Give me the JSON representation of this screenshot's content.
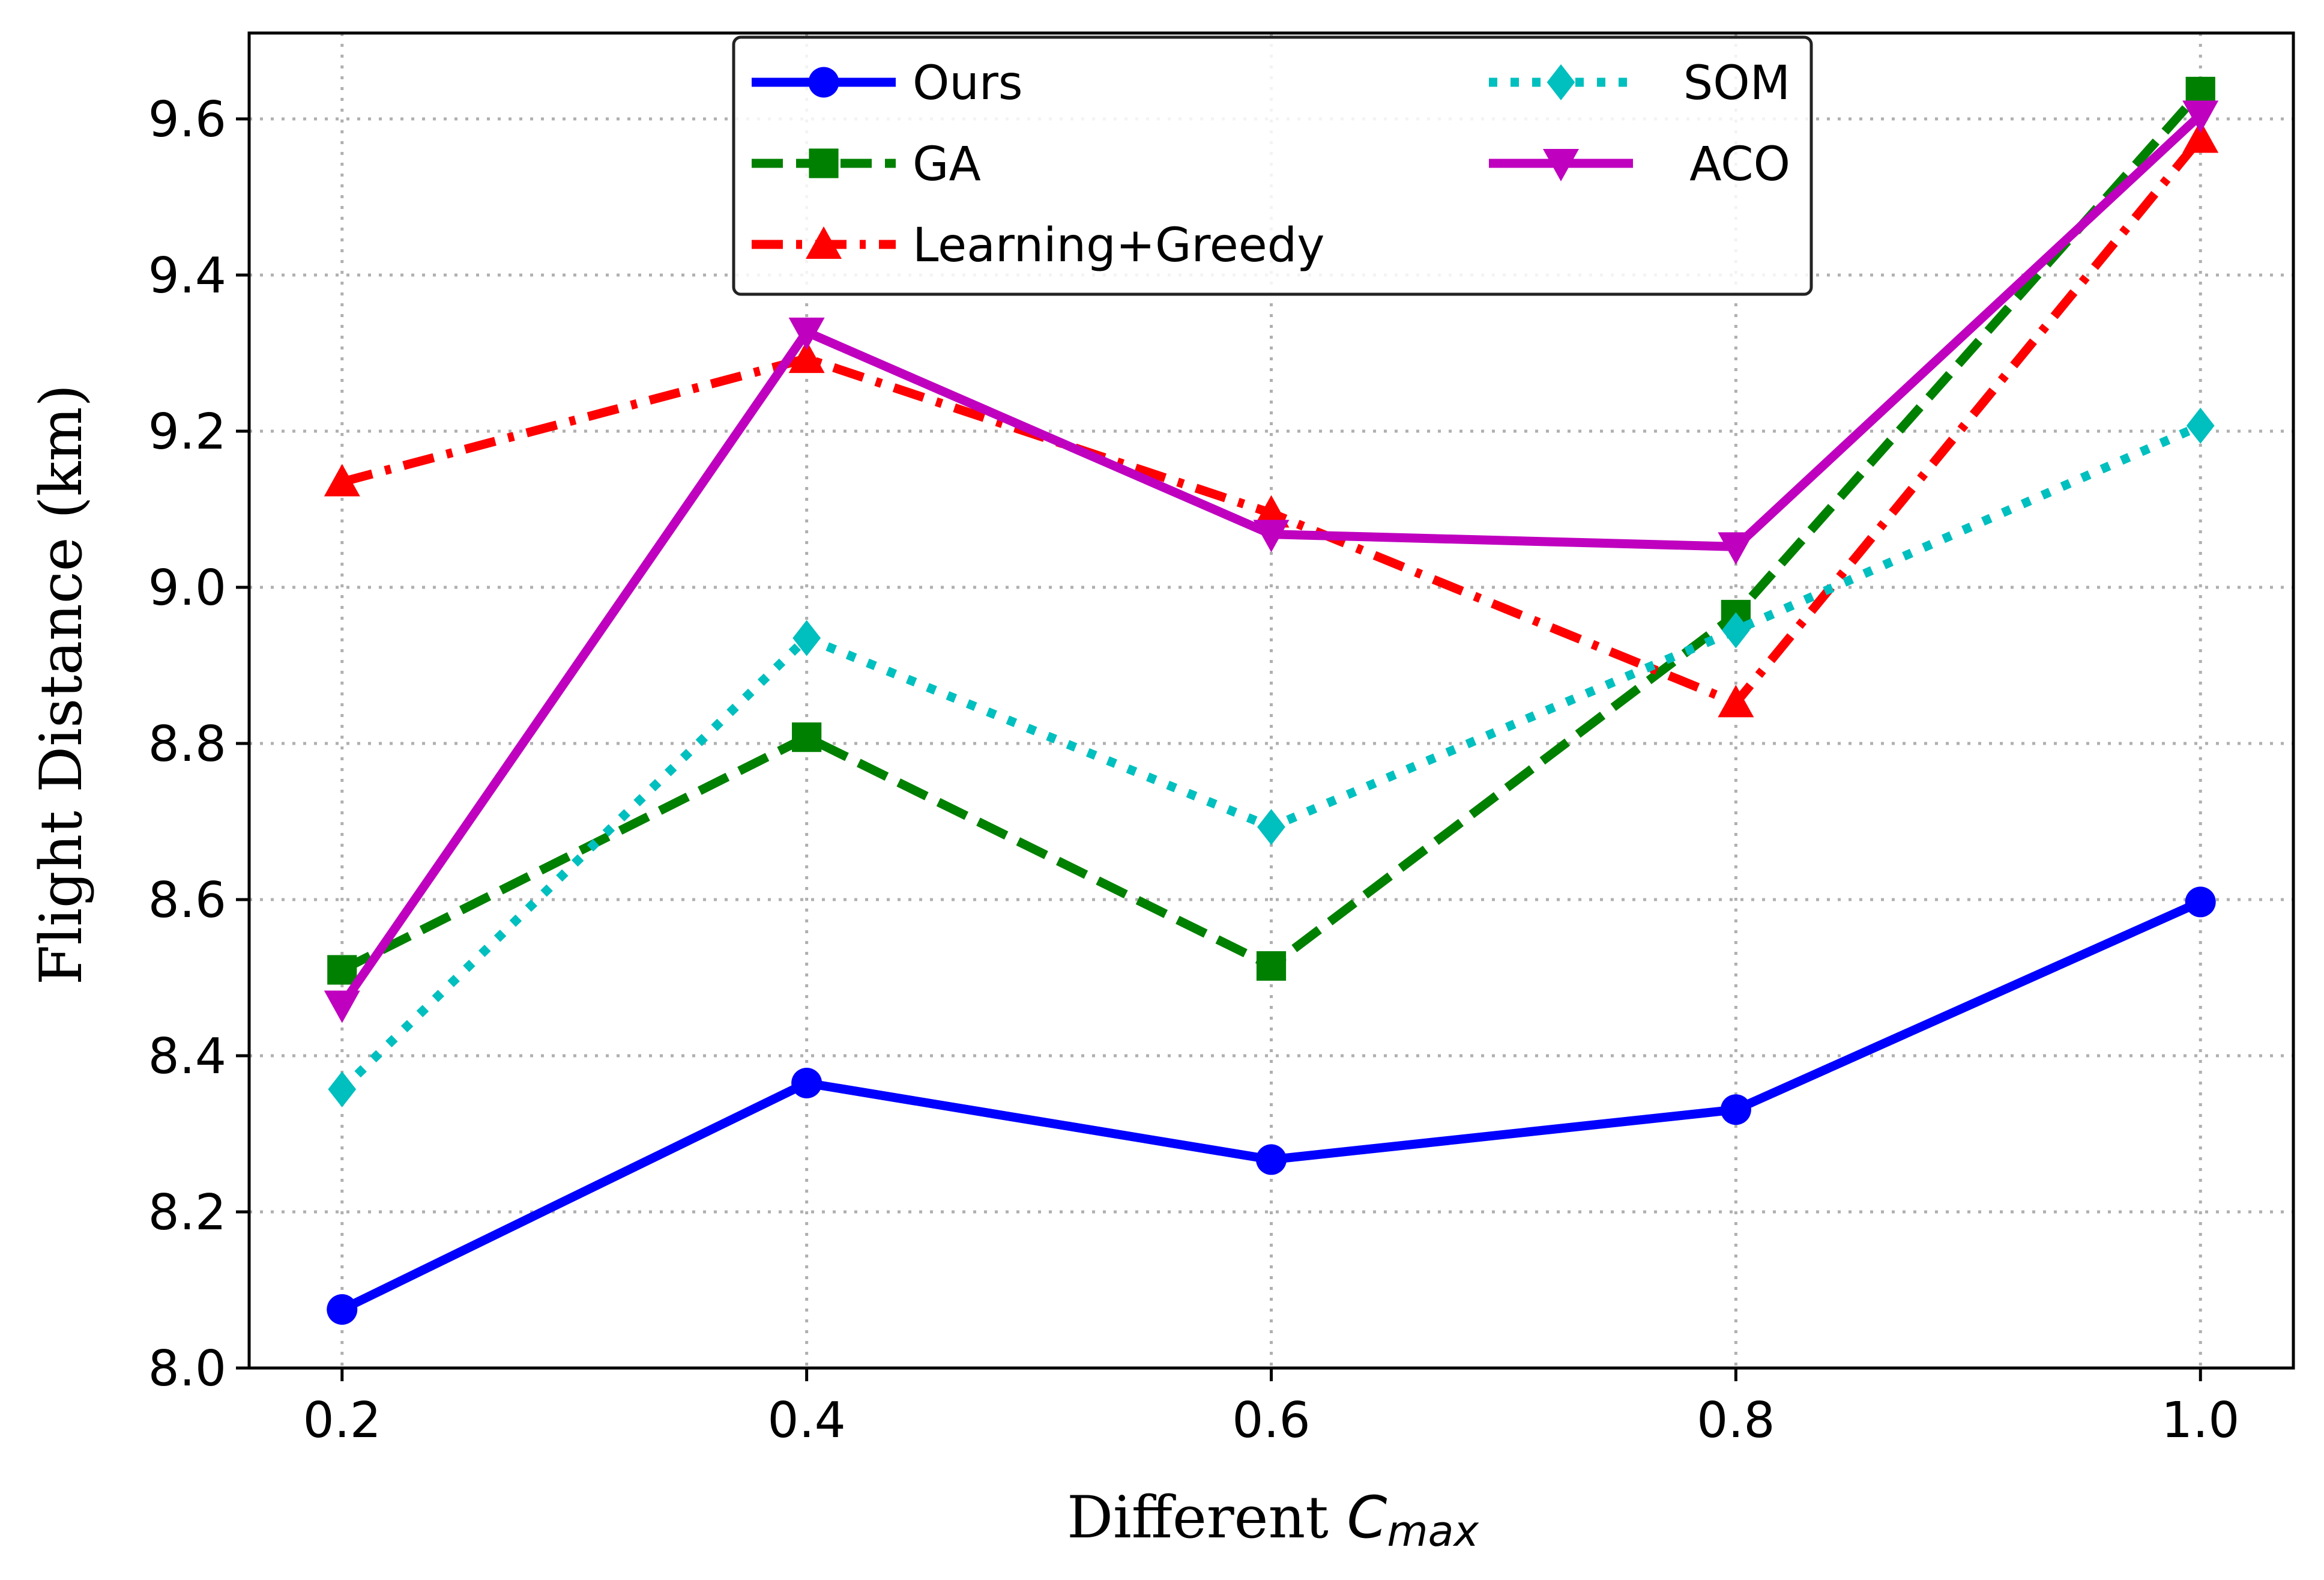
{
  "chart_data": {
    "type": "line",
    "title": "",
    "xlabel_prefix": "Different ",
    "xlabel_symbol": "C",
    "xlabel_subscript": "max",
    "ylabel": "Flight Distance (km)",
    "x": [
      0.2,
      0.4,
      0.6,
      0.8,
      1.0
    ],
    "x_tick_labels": [
      "0.2",
      "0.4",
      "0.6",
      "0.8",
      "1.0"
    ],
    "y_tick_values": [
      8.0,
      8.2,
      8.4,
      8.6,
      8.8,
      9.0,
      9.2,
      9.4,
      9.6
    ],
    "y_tick_labels": [
      "8.0",
      "8.2",
      "8.4",
      "8.6",
      "8.8",
      "9.0",
      "9.2",
      "9.4",
      "9.6"
    ],
    "xlim": [
      0.16,
      1.04
    ],
    "ylim": [
      8.0,
      9.71
    ],
    "grid": true,
    "legend_position": "upper center",
    "series": [
      {
        "name": "Ours",
        "values": [
          8.075,
          8.365,
          8.267,
          8.331,
          8.597
        ],
        "color": "#0000ff",
        "dash": "solid",
        "marker": "circle"
      },
      {
        "name": "GA",
        "values": [
          8.51,
          8.808,
          8.515,
          8.965,
          9.635
        ],
        "color": "#008000",
        "dash": "dashed",
        "marker": "square"
      },
      {
        "name": "Learning+Greedy",
        "values": [
          9.135,
          9.293,
          9.095,
          8.852,
          9.575
        ],
        "color": "#ff0000",
        "dash": "dashdot",
        "marker": "triangle-up"
      },
      {
        "name": "SOM",
        "values": [
          8.357,
          8.935,
          8.693,
          8.945,
          9.207
        ],
        "color": "#00bfbf",
        "dash": "dotted",
        "marker": "diamond"
      },
      {
        "name": "ACO",
        "values": [
          8.465,
          9.327,
          9.068,
          9.052,
          9.605
        ],
        "color": "#bf00bf",
        "dash": "solid",
        "marker": "triangle-down"
      }
    ]
  }
}
